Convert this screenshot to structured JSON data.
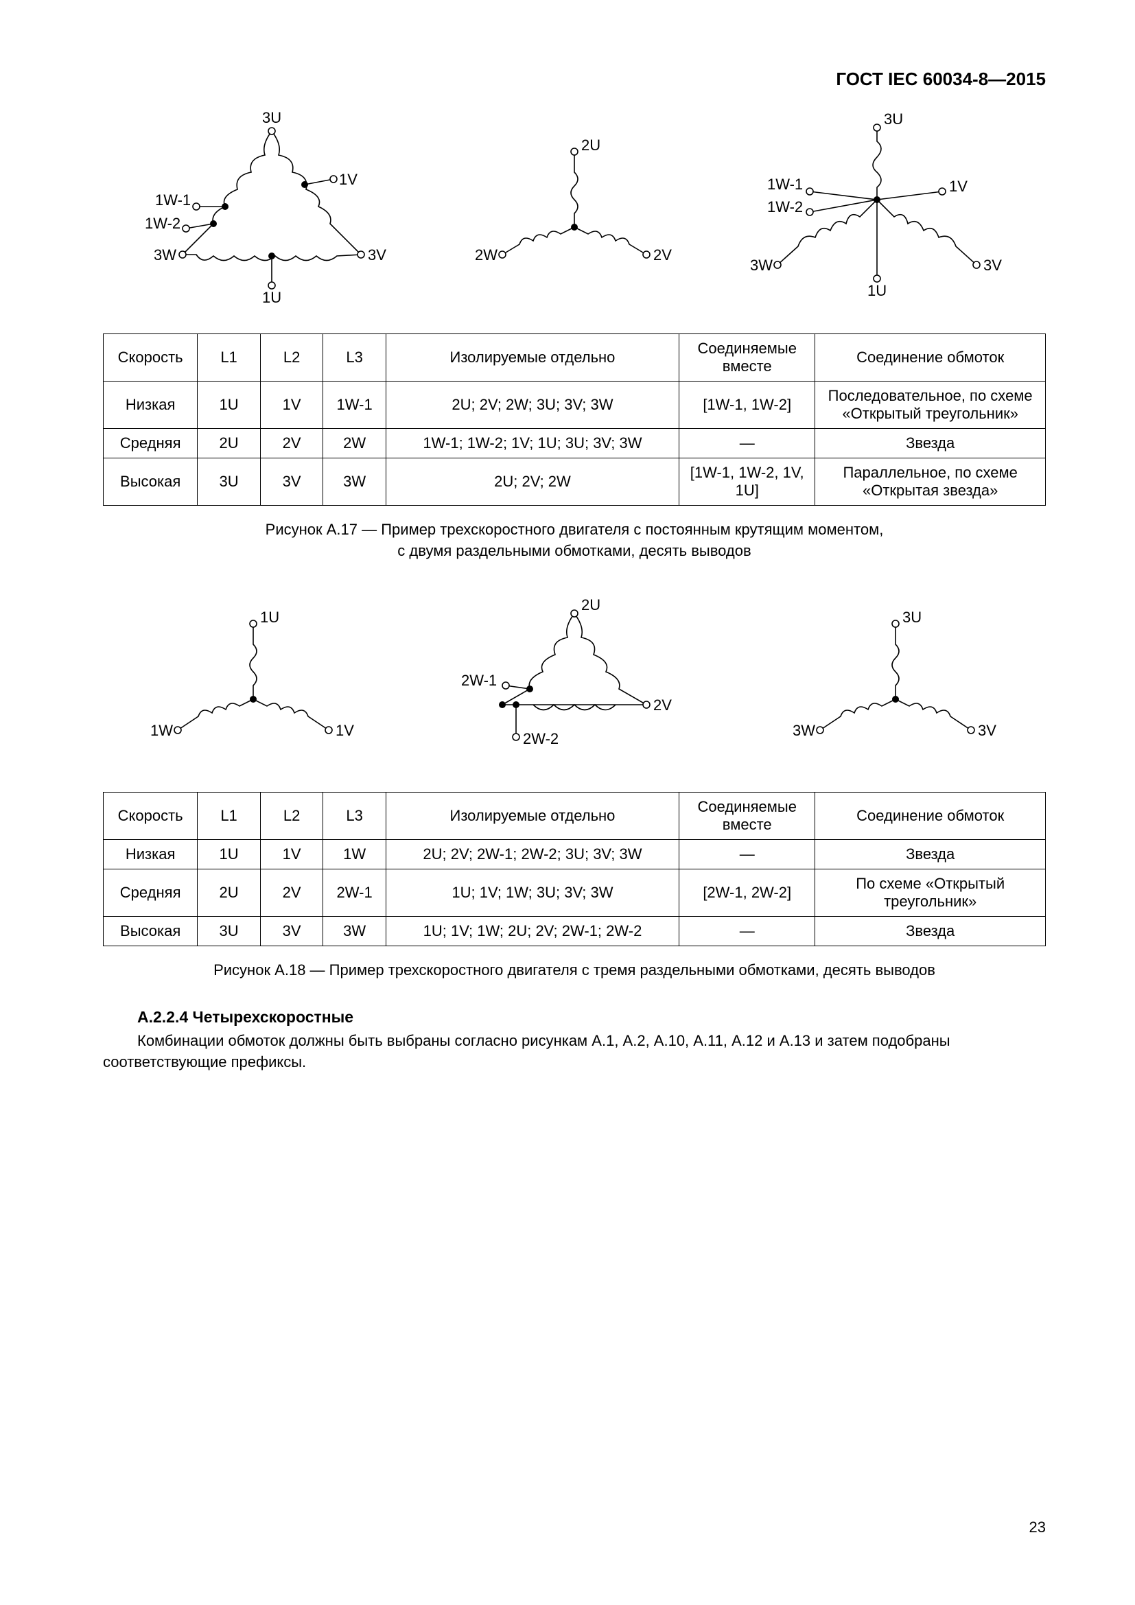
{
  "header": {
    "standard": "ГОСТ IEC 60034-8—2015"
  },
  "page_number": "23",
  "fig17": {
    "caption_line1": "Рисунок А.17 — Пример трехскоростного двигателя с постоянным крутящим моментом,",
    "caption_line2": "с двумя раздельными обмотками, десять выводов",
    "diagrams": {
      "left_labels": {
        "top": "3U",
        "rt": "1V",
        "lb": "3W",
        "ltop": "1W-1",
        "lbot": "1W-2",
        "rb": "3V",
        "bot": "1U"
      },
      "mid_labels": {
        "top": "2U",
        "lb": "2W",
        "rb": "2V"
      },
      "right_labels": {
        "top": "3U",
        "rt": "1V",
        "lb": "3W",
        "ltop": "1W-1",
        "lbot": "1W-2",
        "rb": "3V",
        "bot": "1U"
      }
    },
    "table": {
      "headers": [
        "Скорость",
        "L1",
        "L2",
        "L3",
        "Изолируемые отдельно",
        "Соединяемые вместе",
        "Соединение обмоток"
      ],
      "rows": [
        [
          "Низкая",
          "1U",
          "1V",
          "1W-1",
          "2U; 2V; 2W; 3U; 3V; 3W",
          "[1W-1, 1W-2]",
          "Последовательное, по схеме «Открытый треугольник»"
        ],
        [
          "Средняя",
          "2U",
          "2V",
          "2W",
          "1W-1; 1W-2; 1V; 1U; 3U; 3V; 3W",
          "—",
          "Звезда"
        ],
        [
          "Высокая",
          "3U",
          "3V",
          "3W",
          "2U; 2V; 2W",
          "[1W-1, 1W-2, 1V, 1U]",
          "Параллельное, по схеме «Открытая звезда»"
        ]
      ]
    }
  },
  "fig18": {
    "caption": "Рисунок А.18 — Пример трехскоростного двигателя с тремя раздельными обмотками, десять выводов",
    "diagrams": {
      "left_labels": {
        "top": "1U",
        "lb": "1W",
        "rb": "1V"
      },
      "mid_labels": {
        "top": "2U",
        "rt": "2V",
        "ltop": "2W-1",
        "bot": "2W-2"
      },
      "right_labels": {
        "top": "3U",
        "lb": "3W",
        "rb": "3V"
      }
    },
    "table": {
      "headers": [
        "Скорость",
        "L1",
        "L2",
        "L3",
        "Изолируемые отдельно",
        "Соединяемые вместе",
        "Соединение обмоток"
      ],
      "rows": [
        [
          "Низкая",
          "1U",
          "1V",
          "1W",
          "2U; 2V; 2W-1; 2W-2; 3U; 3V; 3W",
          "—",
          "Звезда"
        ],
        [
          "Средняя",
          "2U",
          "2V",
          "2W-1",
          "1U; 1V; 1W; 3U; 3V; 3W",
          "[2W-1, 2W-2]",
          "По схеме «Открытый треугольник»"
        ],
        [
          "Высокая",
          "3U",
          "3V",
          "3W",
          "1U; 1V; 1W; 2U; 2V; 2W-1; 2W-2",
          "—",
          "Звезда"
        ]
      ]
    }
  },
  "section": {
    "heading": "А.2.2.4  Четырехскоростные",
    "body": "Комбинации обмоток должны быть выбраны согласно рисункам А.1, А.2, А.10, А.11, А.12 и А.13 и затем подобраны соответствующие префиксы."
  },
  "style": {
    "stroke": "#000000",
    "stroke_width": 1.6,
    "font_label": 22
  }
}
